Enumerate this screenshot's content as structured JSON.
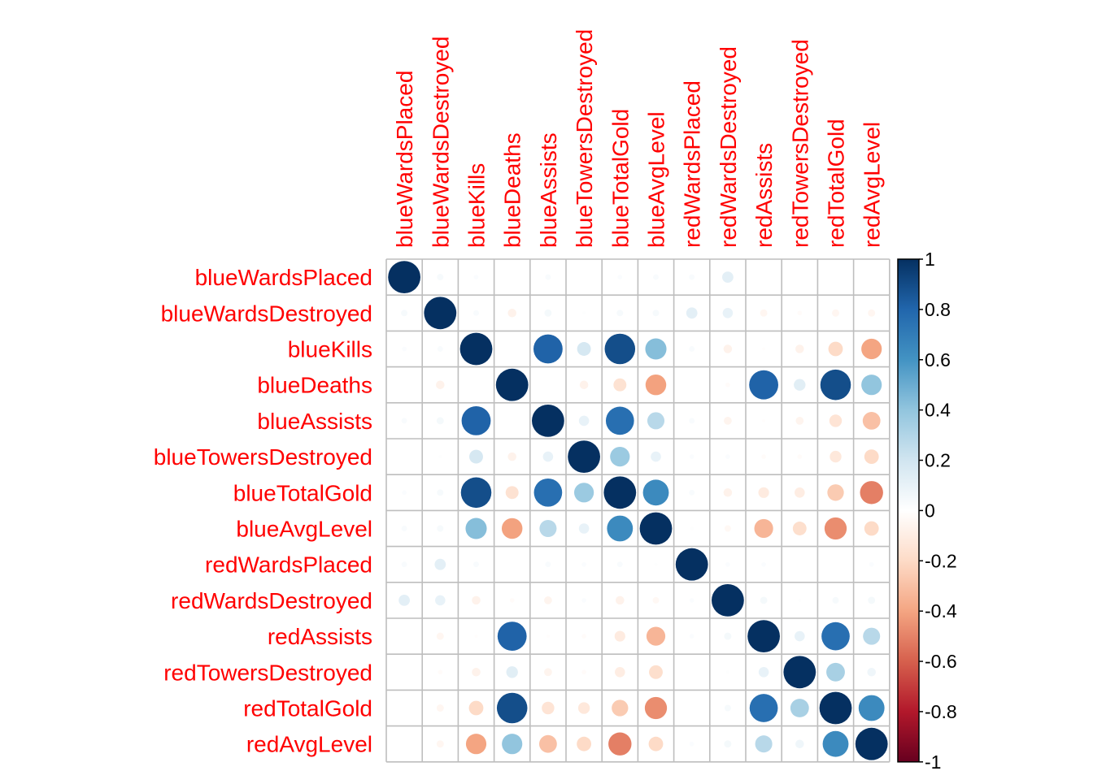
{
  "chart_data": {
    "type": "heatmap",
    "variables": [
      "blueWardsPlaced",
      "blueWardsDestroyed",
      "blueKills",
      "blueDeaths",
      "blueAssists",
      "blueTowersDestroyed",
      "blueTotalGold",
      "blueAvgLevel",
      "redWardsPlaced",
      "redWardsDestroyed",
      "redAssists",
      "redTowersDestroyed",
      "redTotalGold",
      "redAvgLevel"
    ],
    "matrix": [
      [
        1.0,
        0.04,
        0.02,
        0.0,
        0.03,
        0.0,
        0.02,
        0.03,
        0.03,
        0.12,
        0.0,
        0.0,
        0.0,
        0.0
      ],
      [
        0.04,
        1.0,
        0.03,
        -0.07,
        0.05,
        0.01,
        0.04,
        0.04,
        0.12,
        0.1,
        -0.05,
        -0.02,
        -0.05,
        -0.05
      ],
      [
        0.02,
        0.03,
        1.0,
        0.0,
        0.81,
        0.18,
        0.89,
        0.43,
        0.03,
        -0.07,
        -0.01,
        -0.07,
        -0.2,
        -0.4
      ],
      [
        0.0,
        -0.07,
        0.0,
        1.0,
        0.0,
        -0.07,
        -0.16,
        -0.41,
        0.0,
        -0.02,
        0.81,
        0.13,
        0.89,
        0.4
      ],
      [
        0.03,
        0.05,
        0.81,
        0.0,
        1.0,
        0.1,
        0.76,
        0.28,
        0.03,
        -0.06,
        -0.01,
        -0.06,
        -0.15,
        -0.3
      ],
      [
        0.0,
        0.01,
        0.18,
        -0.07,
        0.1,
        1.0,
        0.37,
        0.1,
        0.02,
        0.02,
        -0.02,
        -0.02,
        -0.13,
        -0.2
      ],
      [
        0.02,
        0.04,
        0.89,
        -0.16,
        0.76,
        0.37,
        1.0,
        0.64,
        0.03,
        -0.07,
        -0.11,
        -0.1,
        -0.26,
        -0.51
      ],
      [
        0.03,
        0.04,
        0.43,
        -0.41,
        0.28,
        0.1,
        0.64,
        1.0,
        0.01,
        -0.04,
        -0.34,
        -0.18,
        -0.47,
        -0.2
      ],
      [
        0.03,
        0.12,
        0.03,
        0.0,
        0.03,
        0.02,
        0.03,
        0.01,
        1.0,
        0.02,
        0.02,
        0.0,
        0.0,
        0.02
      ],
      [
        0.12,
        0.1,
        -0.07,
        -0.02,
        -0.06,
        0.02,
        -0.07,
        -0.04,
        0.02,
        1.0,
        0.05,
        0.01,
        0.04,
        0.05
      ],
      [
        0.0,
        -0.05,
        -0.01,
        0.81,
        -0.01,
        -0.02,
        -0.11,
        -0.34,
        0.02,
        0.05,
        1.0,
        0.1,
        0.76,
        0.28
      ],
      [
        0.0,
        -0.02,
        -0.07,
        0.13,
        -0.06,
        -0.02,
        -0.1,
        -0.18,
        0.0,
        0.01,
        0.1,
        1.0,
        0.33,
        0.07
      ],
      [
        0.0,
        -0.05,
        -0.2,
        0.89,
        -0.15,
        -0.13,
        -0.26,
        -0.47,
        0.0,
        0.04,
        0.76,
        0.33,
        1.0,
        0.64
      ],
      [
        0.0,
        -0.05,
        -0.4,
        0.4,
        -0.3,
        -0.2,
        -0.51,
        -0.2,
        0.02,
        0.05,
        0.28,
        0.07,
        0.64,
        1.0
      ]
    ],
    "colorbar": {
      "ticks": [
        "1",
        "0.8",
        "0.6",
        "0.4",
        "0.2",
        "0",
        "-0.2",
        "-0.4",
        "-0.6",
        "-0.8",
        "-1"
      ],
      "range": [
        -1,
        1
      ],
      "colors_low_to_high": [
        "#67001F",
        "#B2182B",
        "#D6604D",
        "#F4A582",
        "#FDDBC7",
        "#FFFFFF",
        "#D1E5F0",
        "#92C5DE",
        "#4393C3",
        "#2166AC",
        "#053061"
      ]
    },
    "label_color": "#FF0000",
    "grid_color": "#BEBEBE",
    "title": "",
    "xlabel": "",
    "ylabel": ""
  }
}
